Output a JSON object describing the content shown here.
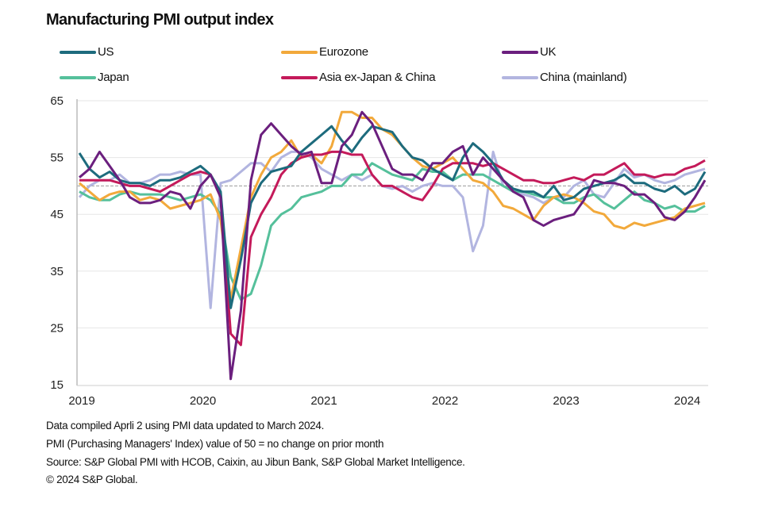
{
  "chart_data": {
    "type": "line",
    "title": "Manufacturing PMI output index",
    "xlabel": "",
    "ylabel": "",
    "ylim": [
      15,
      65
    ],
    "yticks": [
      "65",
      "55",
      "45",
      "35",
      "25",
      "15"
    ],
    "ytick_values": [
      65,
      55,
      45,
      35,
      25,
      15
    ],
    "reference_line": 50,
    "xticks": [
      "2019",
      "2020",
      "2021",
      "2022",
      "2023",
      "2024"
    ],
    "x_start": "Jan 2019",
    "x_end": "Mar 2024",
    "frequency": "monthly",
    "grid": true,
    "legend_position": "top",
    "series": [
      {
        "name": "US",
        "color": "#1d6b7d",
        "values": [
          55.8,
          53,
          51.5,
          52.5,
          51,
          50.5,
          50.5,
          50,
          51,
          51,
          51.5,
          52.5,
          53.5,
          52,
          49,
          28.5,
          37,
          47,
          50.5,
          52.5,
          53,
          53.5,
          56,
          57.5,
          59,
          60.5,
          58,
          56,
          58.5,
          60.5,
          60,
          59.5,
          57,
          55,
          54.5,
          53,
          52,
          51,
          55,
          57.5,
          56,
          54,
          51,
          49.5,
          49,
          49,
          48,
          50,
          47.5,
          48,
          49.5,
          50,
          50.5,
          51,
          52,
          50.5,
          50.5,
          49.5,
          49,
          50,
          48.5,
          49.5,
          52.5
        ]
      },
      {
        "name": "Eurozone",
        "color": "#f2a93b",
        "values": [
          50.5,
          49,
          47.5,
          48.5,
          49,
          49,
          47.5,
          48,
          47.5,
          46,
          46.5,
          47,
          47.5,
          48.5,
          44,
          30,
          39,
          48,
          52,
          55,
          56,
          58,
          55,
          55.5,
          54,
          57,
          63,
          63,
          62,
          62,
          60,
          59,
          57,
          55,
          53.5,
          53,
          54,
          55,
          53,
          51,
          50.5,
          49,
          46.5,
          46,
          45,
          44,
          46.5,
          48,
          48.5,
          48,
          47,
          45.5,
          45,
          43,
          42.5,
          43.5,
          43,
          43.5,
          44,
          44.5,
          46,
          46.5,
          47
        ]
      },
      {
        "name": "UK",
        "color": "#6b1f7e",
        "values": [
          51.5,
          53,
          56,
          53.5,
          51,
          48,
          47,
          47,
          47.5,
          49,
          48.5,
          46,
          50,
          52,
          48,
          16,
          28,
          51,
          59,
          61,
          59,
          57,
          55.5,
          56,
          50.5,
          50.5,
          57,
          59,
          63,
          61,
          57,
          53,
          52,
          52,
          51,
          54,
          54,
          56,
          57,
          52,
          55,
          53,
          51,
          49,
          48,
          44,
          43,
          44,
          44.5,
          45,
          47.5,
          51,
          50.5,
          50.5,
          50,
          48.5,
          48.5,
          47,
          44.5,
          44,
          45.5,
          48,
          51
        ]
      },
      {
        "name": "Japan",
        "color": "#55c09b",
        "values": [
          49,
          48,
          47.5,
          47.5,
          48.5,
          49,
          48.5,
          48.5,
          48.5,
          48,
          47.5,
          48,
          48.5,
          47.5,
          45,
          34,
          30,
          31,
          36,
          43,
          45,
          46,
          48,
          48.5,
          49,
          50,
          50,
          52,
          52,
          54,
          53,
          52,
          51.5,
          51,
          53,
          52.5,
          52.5,
          51,
          52,
          52,
          52,
          51,
          50,
          49,
          49,
          48.5,
          48,
          48,
          47,
          47,
          48,
          48.5,
          47,
          46,
          47.5,
          49,
          47.5,
          47,
          46,
          46.5,
          45.5,
          45.5,
          46.5
        ]
      },
      {
        "name": "Asia ex-Japan & China",
        "color": "#c41a5a",
        "values": [
          51,
          51,
          51,
          51,
          50.5,
          50,
          50,
          49.5,
          49,
          50,
          51,
          52,
          52.5,
          52,
          48,
          24,
          22,
          41,
          45,
          48,
          52,
          54,
          55,
          55.5,
          55.5,
          56,
          56,
          55.5,
          55.5,
          52,
          50,
          50,
          49,
          48,
          47.5,
          50,
          53,
          54,
          54,
          54,
          53.5,
          54,
          53,
          52,
          51,
          51,
          50.5,
          50.5,
          51,
          51.5,
          51,
          52,
          52,
          53,
          54,
          52,
          52,
          51.5,
          52,
          52,
          53,
          53.5,
          54.5
        ]
      },
      {
        "name": "China (mainland)",
        "color": "#b2b5e0",
        "values": [
          48,
          50,
          51,
          51,
          52,
          50.5,
          50.5,
          51,
          52,
          52,
          52.5,
          52,
          52,
          28.5,
          50.5,
          51,
          52.5,
          54,
          54,
          52.5,
          55,
          56,
          56,
          55,
          53,
          52,
          51,
          52,
          51,
          52,
          50,
          49.5,
          50,
          49,
          50,
          50.5,
          50,
          50,
          48,
          38.5,
          43,
          56,
          50,
          49,
          48.5,
          48,
          47,
          48,
          48,
          50,
          51,
          48.5,
          48,
          50.5,
          53,
          51.5,
          52,
          51,
          50.5,
          51,
          52,
          52.5,
          53
        ]
      }
    ]
  },
  "footer": {
    "line1": "Data compiled Aprli 2 using PMI data updated to March 2024.",
    "line2": "PMI (Purchasing Managers' Index) value of 50 = no change on prior month",
    "line3": "Source: S&P Global PMI with HCOB, Caixin, au Jibun Bank, S&P Global Market Intelligence.",
    "line4": "© 2024 S&P Global."
  }
}
